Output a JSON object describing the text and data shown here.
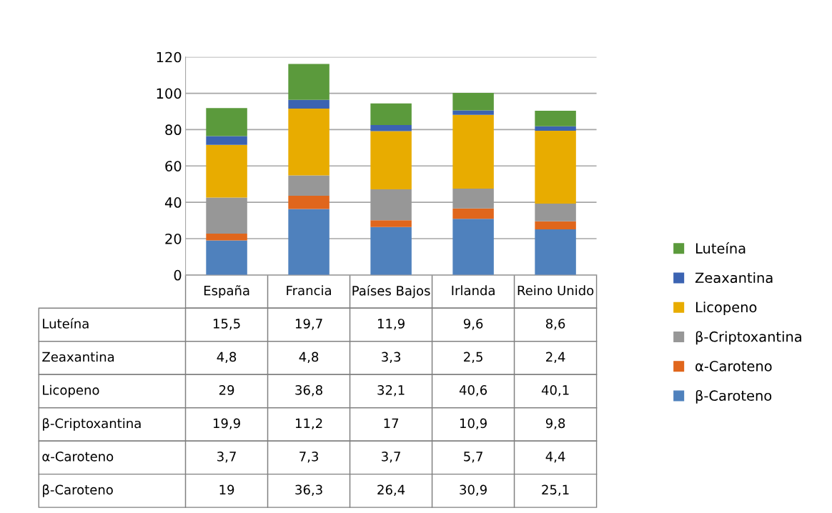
{
  "chart_data": {
    "type": "bar",
    "stacked": true,
    "categories": [
      "España",
      "Francia",
      "Países Bajos",
      "Irlanda",
      "Reino Unido"
    ],
    "ylim": [
      0,
      120
    ],
    "yticks": [
      0,
      20,
      40,
      60,
      80,
      100,
      120
    ],
    "grid": "y",
    "legend": "right",
    "series": [
      {
        "name": "β-Caroteno",
        "color": "#4f81bd",
        "values": [
          19,
          36.3,
          26.4,
          30.9,
          25.1
        ],
        "value_labels": [
          "19",
          "36,3",
          "26,4",
          "30,9",
          "25,1"
        ]
      },
      {
        "name": "α-Caroteno",
        "color": "#e0661c",
        "values": [
          3.7,
          7.3,
          3.7,
          5.7,
          4.4
        ],
        "value_labels": [
          "3,7",
          "7,3",
          "3,7",
          "5,7",
          "4,4"
        ]
      },
      {
        "name": "β-Criptoxantina",
        "color": "#979797",
        "values": [
          19.9,
          11.2,
          17,
          10.9,
          9.8
        ],
        "value_labels": [
          "19,9",
          "11,2",
          "17",
          "10,9",
          "9,8"
        ]
      },
      {
        "name": "Licopeno",
        "color": "#e8ac00",
        "values": [
          29,
          36.8,
          32.1,
          40.6,
          40.1
        ],
        "value_labels": [
          "29",
          "36,8",
          "32,1",
          "40,6",
          "40,1"
        ]
      },
      {
        "name": "Zeaxantina",
        "color": "#3b63b2",
        "values": [
          4.8,
          4.8,
          3.3,
          2.5,
          2.4
        ],
        "value_labels": [
          "4,8",
          "4,8",
          "3,3",
          "2,5",
          "2,4"
        ]
      },
      {
        "name": "Luteína",
        "color": "#5b9a3c",
        "values": [
          15.5,
          19.7,
          11.9,
          9.6,
          8.6
        ],
        "value_labels": [
          "15,5",
          "19,7",
          "11,9",
          "9,6",
          "8,6"
        ]
      }
    ]
  }
}
